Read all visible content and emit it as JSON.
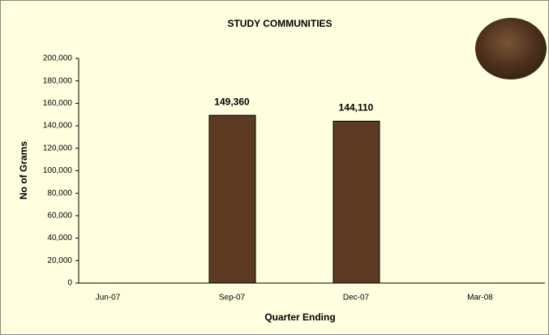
{
  "chart_data": {
    "type": "bar",
    "title": "STUDY COMMUNITIES",
    "x_label": "Quarter Ending",
    "y_label": "No of Grams",
    "categories": [
      "Jun-07",
      "Sep-07",
      "Dec-07",
      "Mar-08"
    ],
    "values": [
      null,
      149360,
      144110,
      null
    ],
    "value_labels": [
      null,
      "149,360",
      "144,110",
      null
    ],
    "color": "#5c3b22",
    "ylim": [
      0,
      200000
    ],
    "yticks": [
      0,
      {
        "value": 20000,
        "label": "20,000"
      },
      {
        "value": 40000,
        "label": "40,000"
      },
      {
        "value": 60000,
        "label": "60,000"
      },
      {
        "value": 80000,
        "label": "80,000"
      },
      {
        "value": 100000,
        "label": "100,000"
      },
      {
        "value": 120000,
        "label": "120,000"
      },
      {
        "value": 140000,
        "label": "140,000"
      },
      {
        "value": 160000,
        "label": "160,000"
      },
      {
        "value": 180000,
        "label": "180,000"
      },
      {
        "value": 200000,
        "label": "200,000"
      }
    ],
    "grid": false
  }
}
